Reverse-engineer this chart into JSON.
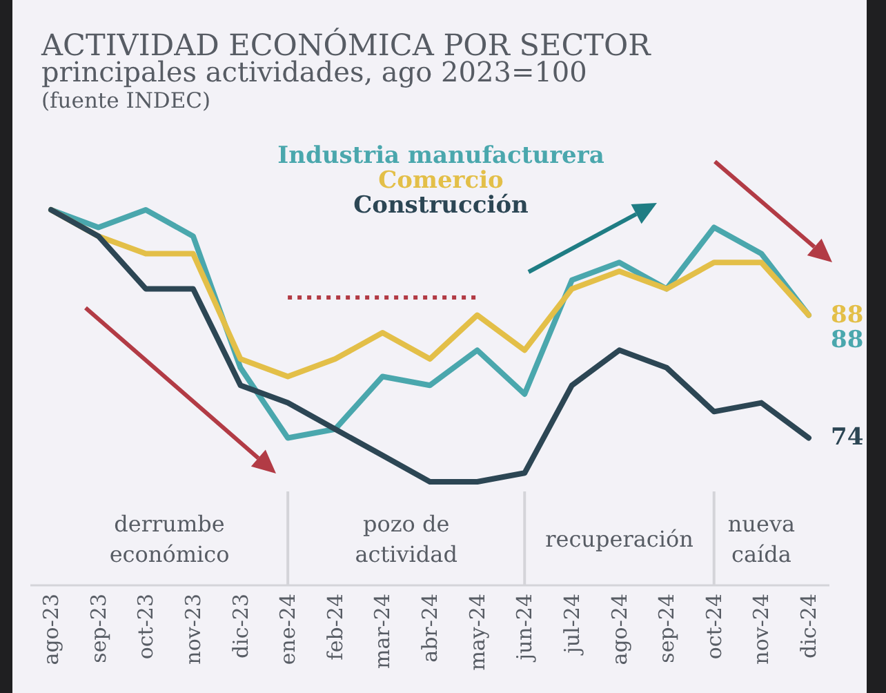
{
  "chart_data": {
    "type": "line",
    "title": "ACTIVIDAD ECONÓMICA POR SECTOR",
    "subtitle": "principales actividades, ago 2023=100",
    "annotations": [
      "(fuente INDEC)",
      "derrumbe económico",
      "pozo de actividad",
      "recuperación",
      "nueva caída"
    ],
    "categories": [
      "ago-23",
      "sep-23",
      "oct-23",
      "nov-23",
      "dic-23",
      "ene-24",
      "feb-24",
      "mar-24",
      "abr-24",
      "may-24",
      "jun-24",
      "jul-24",
      "ago-24",
      "sep-24",
      "oct-24",
      "nov-24",
      "dic-24"
    ],
    "series": [
      {
        "name": "Industria manufacturera",
        "color": "#4aa7ad",
        "values": [
          100,
          98,
          100,
          97,
          82,
          74,
          75,
          81,
          80,
          84,
          79,
          92,
          94,
          91,
          98,
          95,
          88
        ],
        "value_labels": [
          null,
          null,
          null,
          null,
          null,
          null,
          null,
          null,
          null,
          null,
          null,
          null,
          null,
          null,
          null,
          null,
          "88"
        ]
      },
      {
        "name": "Comercio",
        "color": "#e3bf48",
        "values": [
          100,
          97,
          95,
          95,
          83,
          81,
          83,
          86,
          83,
          88,
          84,
          91,
          93,
          91,
          94,
          94,
          88
        ],
        "value_labels": [
          null,
          null,
          null,
          null,
          null,
          null,
          null,
          null,
          null,
          null,
          null,
          null,
          null,
          null,
          null,
          null,
          "88"
        ]
      },
      {
        "name": "Construcción",
        "color": "#2c4654",
        "values": [
          100,
          97,
          91,
          91,
          80,
          78,
          75,
          72,
          69,
          69,
          70,
          80,
          84,
          82,
          77,
          78,
          74
        ],
        "value_labels": [
          null,
          null,
          null,
          null,
          null,
          null,
          null,
          null,
          null,
          null,
          null,
          null,
          null,
          null,
          null,
          null,
          "74"
        ]
      },
      {
        "color": "#b23b45",
        "line_style": "dotted",
        "values": [
          null,
          null,
          null,
          null,
          null,
          90,
          90,
          90,
          90,
          90,
          null,
          null,
          null,
          null,
          null,
          null,
          null
        ]
      }
    ],
    "tick_labels": "x",
    "legend": "top"
  }
}
